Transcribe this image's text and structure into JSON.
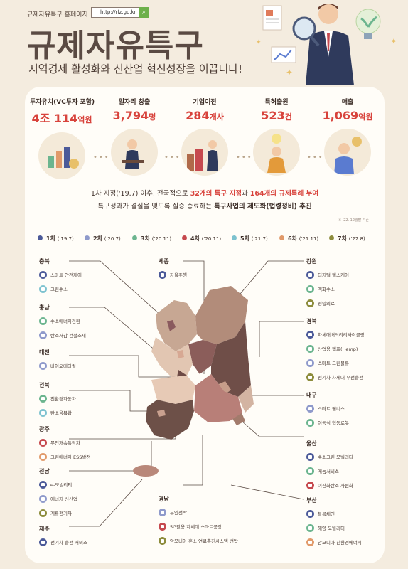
{
  "header": {
    "site_label": "규제자유특구 홈페이지",
    "url": "http://rfz.go.kr",
    "title": "규제자유특구",
    "subtitle": "지역경제 활성화와 신산업 혁신성장을 이끕니다!"
  },
  "stats": [
    {
      "label": "투자유치(VC투자 포함)",
      "value": "4조 114",
      "unit": "억원"
    },
    {
      "label": "일자리 창출",
      "value": "3,794",
      "unit": "명"
    },
    {
      "label": "기업이전",
      "value": "284",
      "unit": "개사"
    },
    {
      "label": "특허출원",
      "value": "523",
      "unit": "건"
    },
    {
      "label": "매출",
      "value": "1,069",
      "unit": "억원"
    }
  ],
  "description": {
    "line1_a": "1차 지정('19.7) 이후, 전국적으로 ",
    "line1_b": "32개의 특구 지정",
    "line1_c": "과 ",
    "line1_d": "164개의 규제특례 부여",
    "line2_a": "특구성과가 결실을 맺도록 실증 종료하는 ",
    "line2_b": "특구사업의 제도화(법령정비) 추진",
    "note": "※ '22. 12월말 기준"
  },
  "legend": [
    {
      "name": "1차",
      "date": "('19.7)",
      "color": "#4c5a99"
    },
    {
      "name": "2차",
      "date": "('20.7)",
      "color": "#8f9acb"
    },
    {
      "name": "3차",
      "date": "('20.11)",
      "color": "#6cb58f"
    },
    {
      "name": "4차",
      "date": "('20.11)",
      "color": "#c6494e"
    },
    {
      "name": "5차",
      "date": "('21.7)",
      "color": "#7dc2cf"
    },
    {
      "name": "6차",
      "date": "('21.11)",
      "color": "#e19a6a"
    },
    {
      "name": "7차",
      "date": "('22.8)",
      "color": "#8d8c3c"
    }
  ],
  "regions": {
    "chungbuk": {
      "name": "충북",
      "items": [
        {
          "text": "스마트 안전제어",
          "color": "#4c5a99"
        },
        {
          "text": "그린수소",
          "color": "#7dc2cf"
        }
      ]
    },
    "chungnam": {
      "name": "충남",
      "items": [
        {
          "text": "수소에너지전환",
          "color": "#6cb58f"
        },
        {
          "text": "탄소저감 건설소재",
          "color": "#8f9acb"
        }
      ]
    },
    "daejeon": {
      "name": "대전",
      "items": [
        {
          "text": "바이오메디컬",
          "color": "#8f9acb"
        }
      ]
    },
    "jeonbuk": {
      "name": "전북",
      "items": [
        {
          "text": "친환경자동차",
          "color": "#6cb58f"
        },
        {
          "text": "탄소융복합",
          "color": "#7dc2cf"
        }
      ]
    },
    "gwangju": {
      "name": "광주",
      "items": [
        {
          "text": "무인저속특장차",
          "color": "#c6494e"
        },
        {
          "text": "그린에너지 ESS발전",
          "color": "#e19a6a"
        }
      ]
    },
    "jeonnam": {
      "name": "전남",
      "items": [
        {
          "text": "e-모빌리티",
          "color": "#4c5a99"
        },
        {
          "text": "에너지 신산업",
          "color": "#8f9acb"
        },
        {
          "text": "계류전기차",
          "color": "#8d8c3c"
        }
      ]
    },
    "jeju": {
      "name": "제주",
      "items": [
        {
          "text": "전기차 충전 서비스",
          "color": "#4c5a99"
        }
      ]
    },
    "sejong": {
      "name": "세종",
      "items": [
        {
          "text": "자율주행",
          "color": "#4c5a99"
        }
      ]
    },
    "gyeongnam": {
      "name": "경남",
      "items": [
        {
          "text": "무인선박",
          "color": "#8f9acb"
        },
        {
          "text": "5G활용 차세대 스마트공장",
          "color": "#c6494e"
        },
        {
          "text": "암모니아 혼소 연료추진시스템 선박",
          "color": "#8d8c3c"
        }
      ]
    },
    "gangwon": {
      "name": "강원",
      "items": [
        {
          "text": "디지털 헬스케어",
          "color": "#4c5a99"
        },
        {
          "text": "액화수소",
          "color": "#6cb58f"
        },
        {
          "text": "정밀의료",
          "color": "#8d8c3c"
        }
      ]
    },
    "gyeongbuk": {
      "name": "경북",
      "items": [
        {
          "text": "차세대배터리리사이클링",
          "color": "#4c5a99"
        },
        {
          "text": "산업용 헴프(Hemp)",
          "color": "#6cb58f"
        },
        {
          "text": "스마트 그린물류",
          "color": "#8f9acb"
        },
        {
          "text": "전기차 차세대 무선충전",
          "color": "#8d8c3c"
        }
      ]
    },
    "daegu": {
      "name": "대구",
      "items": [
        {
          "text": "스마트 웰니스",
          "color": "#8f9acb"
        },
        {
          "text": "이동식 협동로봇",
          "color": "#6cb58f"
        }
      ]
    },
    "ulsan": {
      "name": "울산",
      "items": [
        {
          "text": "수소그린 모빌리티",
          "color": "#4c5a99"
        },
        {
          "text": "게놈서비스",
          "color": "#6cb58f"
        },
        {
          "text": "이산화탄소 자원화",
          "color": "#c6494e"
        }
      ]
    },
    "busan": {
      "name": "부산",
      "items": [
        {
          "text": "블록체인",
          "color": "#4c5a99"
        },
        {
          "text": "해양 모빌리티",
          "color": "#6cb58f"
        },
        {
          "text": "암모니아 친환경에너지",
          "color": "#e19a6a"
        }
      ]
    }
  }
}
